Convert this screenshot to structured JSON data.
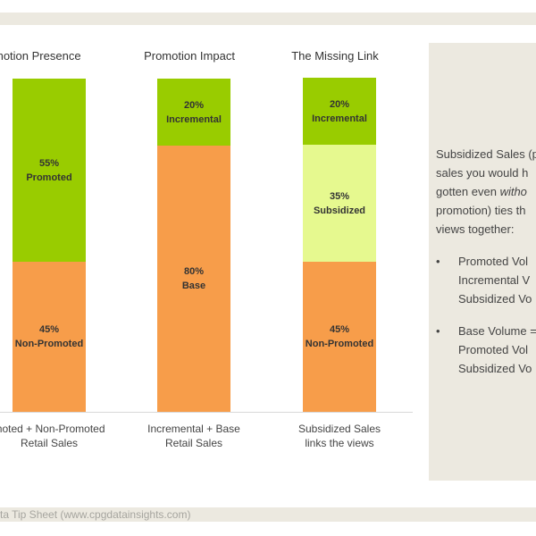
{
  "footer": {
    "text": "ta Tip Sheet (www.cpgdatainsights.com)"
  },
  "chart_data": [
    {
      "type": "bar",
      "title": "romotion Presence",
      "caption": [
        "moted + Non-Promoted",
        "Retail Sales"
      ],
      "segments": [
        {
          "name": "Non-Promoted",
          "value": 45,
          "label": "45%",
          "color": "#f79d4a"
        },
        {
          "name": "Promoted",
          "value": 55,
          "label": "55%",
          "color": "#99cc00"
        }
      ]
    },
    {
      "type": "bar",
      "title": "Promotion Impact",
      "caption": [
        "Incremental + Base",
        "Retail Sales"
      ],
      "segments": [
        {
          "name": "Base",
          "value": 80,
          "label": "80%",
          "color": "#f79d4a"
        },
        {
          "name": "Incremental",
          "value": 20,
          "label": "20%",
          "color": "#99cc00"
        }
      ]
    },
    {
      "type": "bar",
      "title": "The Missing Link",
      "caption": [
        "Subsidized Sales",
        "links the views"
      ],
      "segments": [
        {
          "name": "Non-Promoted",
          "value": 45,
          "label": "45%",
          "color": "#f79d4a"
        },
        {
          "name": "Subsidized",
          "value": 35,
          "label": "35%",
          "color": "#e6f98f"
        },
        {
          "name": "Incremental",
          "value": 20,
          "label": "20%",
          "color": "#99cc00"
        }
      ]
    }
  ],
  "sidebar": {
    "intro_lines": [
      "Subsidized Sales (p",
      "sales you would h",
      "gotten even witho",
      "promotion) ties th",
      "views together:"
    ],
    "italic_word": "witho",
    "bullets": [
      {
        "bullet": "•",
        "lines": [
          "Promoted Vol",
          "Incremental V",
          "Subsidized Vo"
        ]
      },
      {
        "bullet": "•",
        "lines": [
          "Base Volume =",
          "Promoted Vol",
          "Subsidized Vo"
        ]
      }
    ]
  }
}
